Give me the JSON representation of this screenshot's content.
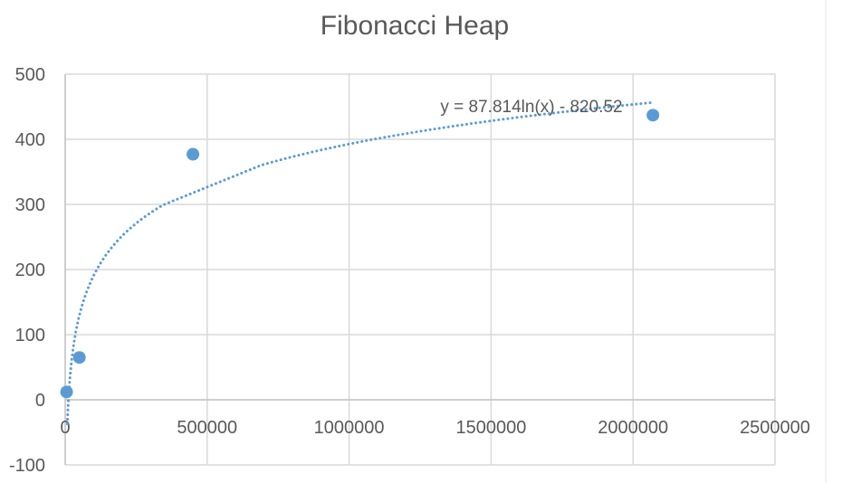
{
  "chart_data": {
    "type": "scatter",
    "title": "Fibonacci Heap",
    "xlabel": "",
    "ylabel": "",
    "xlim": [
      0,
      2500000
    ],
    "ylim": [
      -100,
      500
    ],
    "x_ticks": [
      0,
      500000,
      1000000,
      1500000,
      2000000,
      2500000
    ],
    "x_tick_labels": [
      "0",
      "500000",
      "1000000",
      "1500000",
      "2000000",
      "2500000"
    ],
    "y_ticks": [
      -100,
      0,
      100,
      200,
      300,
      400,
      500
    ],
    "y_tick_labels": [
      "-100",
      "0",
      "100",
      "200",
      "300",
      "400",
      "500"
    ],
    "grid": true,
    "legend": "none",
    "series": [
      {
        "color": "#5b9bd5",
        "points": [
          {
            "x": 5000,
            "y": 12
          },
          {
            "x": 50000,
            "y": 65
          },
          {
            "x": 450000,
            "y": 377
          },
          {
            "x": 2070000,
            "y": 437
          }
        ]
      }
    ],
    "trendline": {
      "type": "logarithmic",
      "a": 87.814,
      "b": -820.52,
      "equation_label": "y = 87.814ln(x) - 820.52",
      "x_range": [
        7500,
        2070000
      ],
      "color": "#5b9bd5",
      "style": "dotted"
    }
  }
}
